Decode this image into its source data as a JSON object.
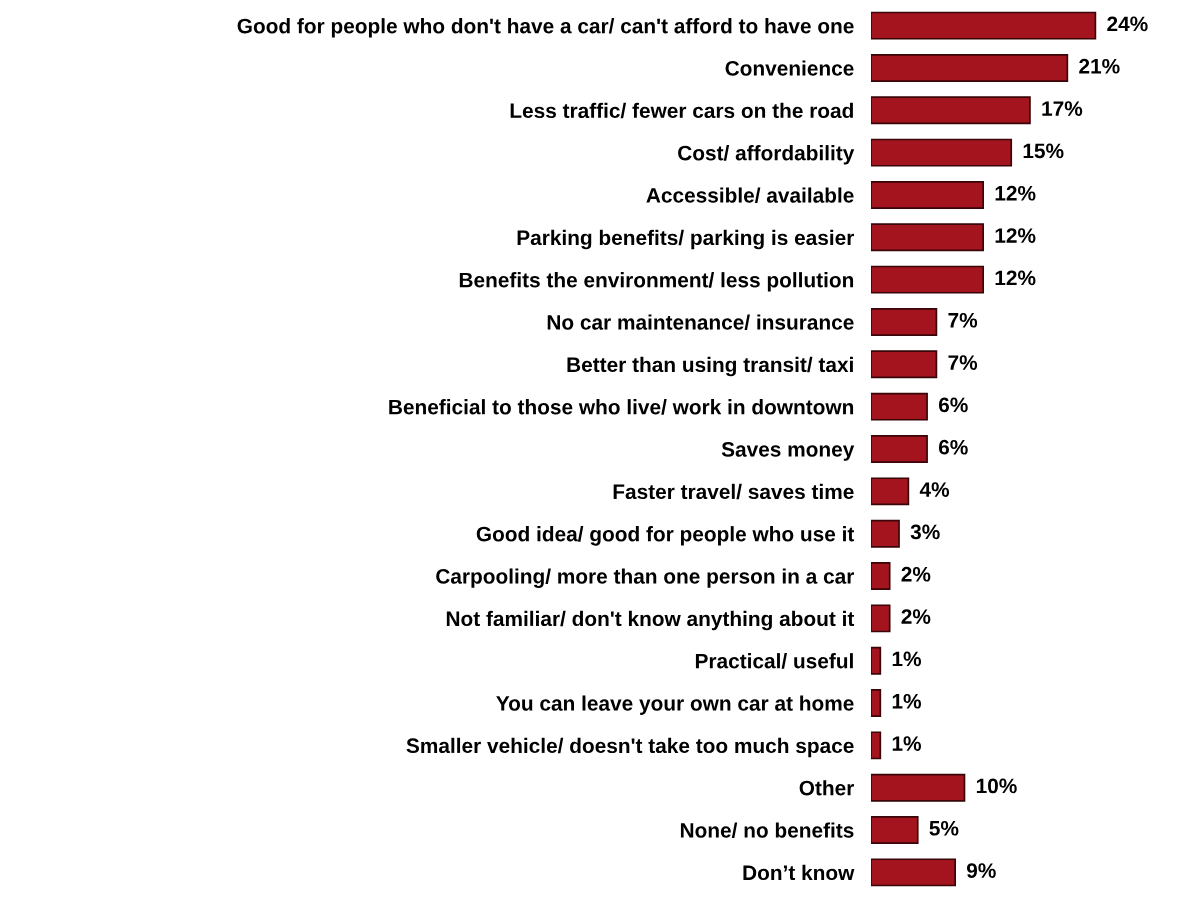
{
  "chart_data": {
    "type": "bar",
    "orientation": "horizontal",
    "tick_labels": "y",
    "grid": false,
    "legend": false,
    "categories": [
      "Good for people who don't have a car/ can't afford to have one",
      "Convenience",
      "Less traffic/ fewer cars on the road",
      "Cost/ affordability",
      "Accessible/ available",
      "Parking benefits/ parking is easier",
      "Benefits the environment/ less pollution",
      "No car maintenance/ insurance",
      "Better than using transit/ taxi",
      "Beneficial to those who live/ work in downtown",
      "Saves money",
      "Faster travel/ saves time",
      "Good idea/ good for people who use it",
      "Carpooling/ more than one person in a car",
      "Not familiar/ don't know anything about it",
      "Practical/ useful",
      "You can leave your own car at home",
      "Smaller vehicle/ doesn't take too much space",
      "Other",
      "None/ no benefits",
      "Don’t know"
    ],
    "values": [
      24,
      21,
      17,
      15,
      12,
      12,
      12,
      7,
      7,
      6,
      6,
      4,
      3,
      2,
      2,
      1,
      1,
      1,
      10,
      5,
      9
    ],
    "value_labels": [
      "24%",
      "21%",
      "17%",
      "15%",
      "12%",
      "12%",
      "12%",
      "7%",
      "7%",
      "6%",
      "6%",
      "4%",
      "3%",
      "2%",
      "2%",
      "1%",
      "1%",
      "1%",
      "10%",
      "5%",
      "9%"
    ],
    "color": "#a3141e"
  }
}
